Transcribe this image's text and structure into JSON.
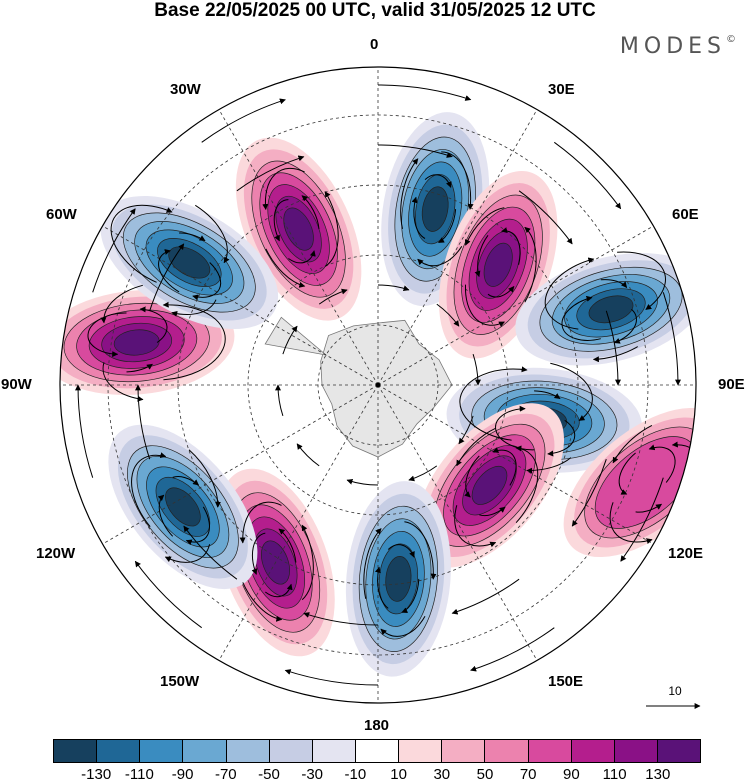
{
  "header": {
    "title": "Base 22/05/2025 00 UTC, valid 31/05/2025 12 UTC",
    "brand": "MODES",
    "brand_mark": "©"
  },
  "map": {
    "projection": "south-polar-stereographic",
    "longitude_labels": [
      "0",
      "30E",
      "60E",
      "90E",
      "120E",
      "150E",
      "180",
      "150W",
      "120W",
      "90W",
      "60W",
      "30W"
    ],
    "reference_vector": "10"
  },
  "legend": {
    "colors": [
      "#16405e",
      "#1f6796",
      "#3a8cc0",
      "#6aa8d2",
      "#9ebedd",
      "#c6cde4",
      "#e4e4f1",
      "#ffffff",
      "#fbd9dc",
      "#f4aec3",
      "#ec82ae",
      "#d84a9e",
      "#b41e8d",
      "#8a1186",
      "#5a1278"
    ],
    "tick_labels": [
      "-130",
      "-110",
      "-90",
      "-70",
      "-50",
      "-30",
      "-10",
      "10",
      "30",
      "50",
      "70",
      "90",
      "110",
      "130"
    ]
  }
}
